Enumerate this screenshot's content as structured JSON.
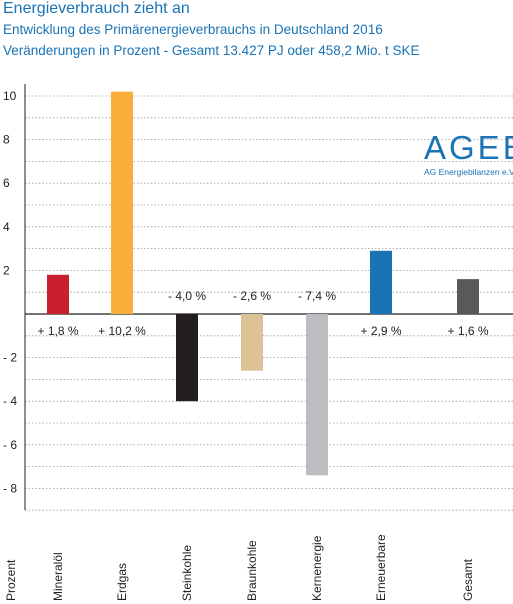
{
  "header": {
    "title": "Energieverbrauch zieht an",
    "subtitle1": "Entwicklung des Primärenergieverbrauchs in Deutschland 2016",
    "subtitle2": "Veränderungen in Prozent - Gesamt 13.427 PJ oder 458,2 Mio. t SKE"
  },
  "logo": {
    "text": "AGEB",
    "subtext": "AG Energiebilanzen e.V."
  },
  "chart_data": {
    "type": "bar",
    "title": "Energieverbrauch zieht an",
    "ylabel": "Prozent",
    "ylim": [
      -9,
      10.6
    ],
    "yticks": [
      10,
      8,
      6,
      4,
      2,
      0,
      -2,
      -4,
      -6,
      -8
    ],
    "ytick_labels": [
      "10",
      "8",
      "6",
      "4",
      "2",
      "",
      "- 2",
      "- 4",
      "- 6",
      "- 8"
    ],
    "grid": "horizontal-dotted",
    "categories": [
      "Mineralöl",
      "Erdgas",
      "Steinkohle",
      "Braunkohle",
      "Kernenergie",
      "Erneuerbare",
      "Gesamt"
    ],
    "values": [
      1.8,
      10.2,
      -4.0,
      -2.6,
      -7.4,
      2.9,
      1.6
    ],
    "data_labels": [
      "+ 1,8 %",
      "+ 10,2 %",
      "- 4,0 %",
      "- 2,6 %",
      "- 7,4 %",
      "+ 2,9 %",
      "+ 1,6 %"
    ],
    "colors": [
      "#c8202c",
      "#f9ad3a",
      "#231f20",
      "#dcc395",
      "#bcbdc0",
      "#1a73b5",
      "#59595b"
    ]
  }
}
